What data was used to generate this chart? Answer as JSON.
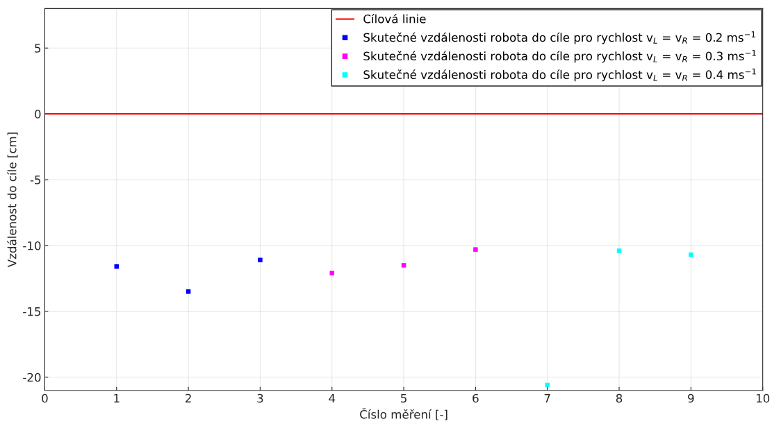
{
  "chart_data": {
    "type": "scatter",
    "xlabel": "Číslo měření [-]",
    "ylabel": "Vzdálenost do cíle [cm]",
    "xlim": [
      0,
      10
    ],
    "ylim": [
      -21,
      8
    ],
    "xticks": [
      0,
      1,
      2,
      3,
      4,
      5,
      6,
      7,
      8,
      9,
      10
    ],
    "yticks": [
      -20,
      -15,
      -10,
      -5,
      0,
      5
    ],
    "grid": true,
    "legend": "top right",
    "marker": "square",
    "ref_lines": [
      {
        "axis": "y",
        "value": 0,
        "label": "Cílová linie",
        "color": "#ff0000",
        "line_style": "solid"
      }
    ],
    "series": [
      {
        "name": "Skutečné vzdálenosti robota do cíle pro rychlost v$_{L}$ = v$_{R}$ = 0.2 ms$^{−1}$",
        "color": "#0000ff",
        "x": [
          1,
          2,
          3
        ],
        "values": [
          -11.6,
          -13.5,
          -11.1
        ]
      },
      {
        "name": "Skutečné vzdálenosti robota do cíle pro rychlost v$_{L}$ = v$_{R}$ = 0.3 ms$^{−1}$",
        "color": "#ff00ff",
        "x": [
          4,
          5,
          6
        ],
        "values": [
          -12.1,
          -11.5,
          -10.3
        ]
      },
      {
        "name": "Skutečné vzdálenosti robota do cíle pro rychlost v$_{L}$ = v$_{R}$ = 0.4 ms$^{−1}$",
        "color": "#00ffff",
        "x": [
          7,
          8,
          9
        ],
        "values": [
          -20.6,
          -10.4,
          -10.7
        ]
      }
    ]
  }
}
